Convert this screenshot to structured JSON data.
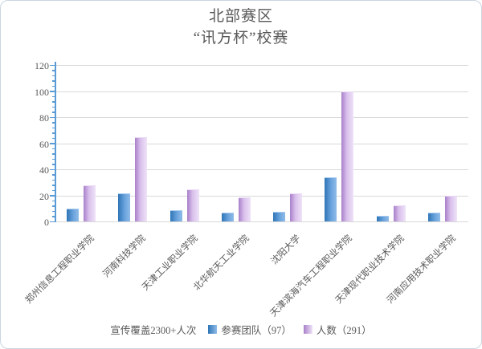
{
  "title": {
    "line1": "北部赛区",
    "line2": "“讯方杯”校赛"
  },
  "colors": {
    "teams_bar_dark": "#2E75B6",
    "teams_bar_light": "#8FBCE9",
    "people_bar_dark": "#A87FC9",
    "people_bar_light": "#EFE3F8",
    "axis": "#5B9BD5",
    "gridline": "#D9D9D9",
    "text": "#595959"
  },
  "chart_data": {
    "type": "bar",
    "title": "北部赛区 “讯方杯”校赛",
    "categories": [
      "郑州信息工程职业学院",
      "河南科技学院",
      "天津工业职业学院",
      "北华航天工业学院",
      "沈阳大学",
      "天津滨海汽车工程职业学院",
      "天津现代职业技术学院",
      "河南应用技术职业学院"
    ],
    "series": [
      {
        "name": "参赛团队（97）",
        "values": [
          9,
          21,
          8,
          6,
          7,
          33,
          4,
          6
        ]
      },
      {
        "name": "人数（291）",
        "values": [
          27,
          64,
          24,
          18,
          21,
          99,
          12,
          19
        ]
      }
    ],
    "ylim": [
      0,
      120
    ],
    "ytick_interval": 20,
    "yminor_interval": 4,
    "grid": true,
    "legend_position": "bottom",
    "annotation": "宣传覆盖2300+人次"
  },
  "legend": {
    "note": "宣传覆盖2300+人次"
  }
}
